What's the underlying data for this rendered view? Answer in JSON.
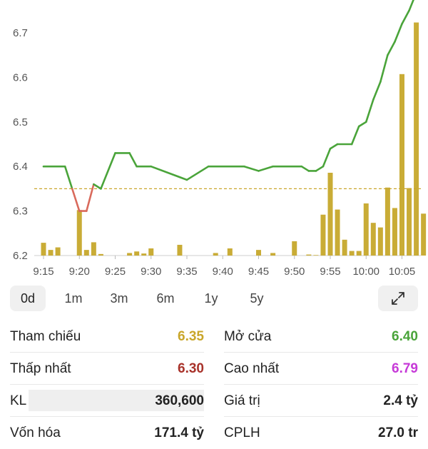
{
  "chart_data": {
    "type": "line",
    "x_ticks": [
      "9:15",
      "9:20",
      "9:25",
      "9:30",
      "9:35",
      "9:40",
      "9:45",
      "9:50",
      "9:55",
      "10:00",
      "10:05"
    ],
    "y_ticks": [
      "6.2",
      "6.3",
      "6.4",
      "6.5",
      "6.6",
      "6.7"
    ],
    "ylim": [
      6.2,
      6.8
    ],
    "reference_price": 6.35,
    "price_series": [
      {
        "t": "9:15",
        "p": 6.4
      },
      {
        "t": "9:18",
        "p": 6.4
      },
      {
        "t": "9:19",
        "p": 6.35
      },
      {
        "t": "9:20",
        "p": 6.3
      },
      {
        "t": "9:21",
        "p": 6.3
      },
      {
        "t": "9:22",
        "p": 6.36
      },
      {
        "t": "9:23",
        "p": 6.35
      },
      {
        "t": "9:25",
        "p": 6.43
      },
      {
        "t": "9:27",
        "p": 6.43
      },
      {
        "t": "9:28",
        "p": 6.4
      },
      {
        "t": "9:30",
        "p": 6.4
      },
      {
        "t": "9:35",
        "p": 6.37
      },
      {
        "t": "9:38",
        "p": 6.4
      },
      {
        "t": "9:43",
        "p": 6.4
      },
      {
        "t": "9:45",
        "p": 6.39
      },
      {
        "t": "9:47",
        "p": 6.4
      },
      {
        "t": "9:51",
        "p": 6.4
      },
      {
        "t": "9:52",
        "p": 6.39
      },
      {
        "t": "9:53",
        "p": 6.39
      },
      {
        "t": "9:54",
        "p": 6.4
      },
      {
        "t": "9:55",
        "p": 6.44
      },
      {
        "t": "9:56",
        "p": 6.45
      },
      {
        "t": "9:58",
        "p": 6.45
      },
      {
        "t": "9:59",
        "p": 6.49
      },
      {
        "t": "10:00",
        "p": 6.5
      },
      {
        "t": "10:01",
        "p": 6.55
      },
      {
        "t": "10:02",
        "p": 6.59
      },
      {
        "t": "10:03",
        "p": 6.65
      },
      {
        "t": "10:04",
        "p": 6.68
      },
      {
        "t": "10:05",
        "p": 6.72
      },
      {
        "t": "10:06",
        "p": 6.75
      },
      {
        "t": "10:07",
        "p": 6.79
      }
    ],
    "volume_bars": [
      {
        "t": "9:15",
        "v": 0.25
      },
      {
        "t": "9:16",
        "v": 0.11
      },
      {
        "t": "9:17",
        "v": 0.16
      },
      {
        "t": "9:20",
        "v": 0.89
      },
      {
        "t": "9:21",
        "v": 0.11
      },
      {
        "t": "9:22",
        "v": 0.26
      },
      {
        "t": "9:23",
        "v": 0.03
      },
      {
        "t": "9:27",
        "v": 0.05
      },
      {
        "t": "9:28",
        "v": 0.08
      },
      {
        "t": "9:29",
        "v": 0.04
      },
      {
        "t": "9:30",
        "v": 0.14
      },
      {
        "t": "9:34",
        "v": 0.21
      },
      {
        "t": "9:39",
        "v": 0.05
      },
      {
        "t": "9:41",
        "v": 0.14
      },
      {
        "t": "9:45",
        "v": 0.11
      },
      {
        "t": "9:47",
        "v": 0.05
      },
      {
        "t": "9:50",
        "v": 0.28
      },
      {
        "t": "9:52",
        "v": 0.02
      },
      {
        "t": "9:53",
        "v": 0.01
      },
      {
        "t": "9:54",
        "v": 0.8
      },
      {
        "t": "9:55",
        "v": 1.62
      },
      {
        "t": "9:56",
        "v": 0.9
      },
      {
        "t": "9:57",
        "v": 0.31
      },
      {
        "t": "9:58",
        "v": 0.09
      },
      {
        "t": "9:59",
        "v": 0.09
      },
      {
        "t": "10:00",
        "v": 1.02
      },
      {
        "t": "10:01",
        "v": 0.64
      },
      {
        "t": "10:02",
        "v": 0.55
      },
      {
        "t": "10:03",
        "v": 1.33
      },
      {
        "t": "10:04",
        "v": 0.93
      },
      {
        "t": "10:05",
        "v": 3.55
      },
      {
        "t": "10:06",
        "v": 1.32
      },
      {
        "t": "10:07",
        "v": 4.56
      },
      {
        "t": "10:08",
        "v": 0.82
      }
    ],
    "colors": {
      "up": "#4aa43a",
      "down": "#d96a5c",
      "reference": "#c9a62a",
      "volume": "#c9ac36"
    }
  },
  "ranges": [
    "0d",
    "1m",
    "3m",
    "6m",
    "1y",
    "5y"
  ],
  "active_range": "0d",
  "stats": {
    "ref_label": "Tham chiếu",
    "ref_value": "6.35",
    "open_label": "Mở cửa",
    "open_value": "6.40",
    "low_label": "Thấp nhất",
    "low_value": "6.30",
    "high_label": "Cao nhất",
    "high_value": "6.79",
    "vol_label": "KL",
    "vol_value": "360,600",
    "val_label": "Giá trị",
    "val_value": "2.4 tỷ",
    "row5_left_label": "Vốn hóa",
    "row5_left_value": "171.4 tỷ",
    "row5_right_label": "CPLH",
    "row5_right_value": "27.0 tr"
  },
  "colors": {
    "ref": "#c9a62a",
    "open": "#4aa43a",
    "low": "#a8322a",
    "high": "#c63ad8"
  },
  "icons": {
    "expand": "expand-arrows-icon"
  }
}
